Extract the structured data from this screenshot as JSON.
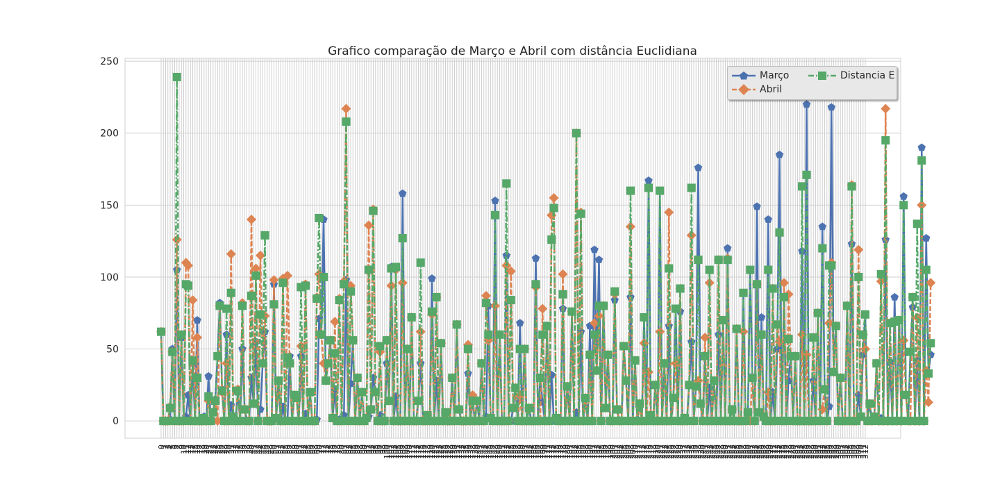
{
  "chart_data": {
    "type": "line",
    "title": "Grafico comparação de Março e Abril com distância Euclidiana",
    "xlabel": "",
    "ylabel": "",
    "ylim": [
      -12,
      252
    ],
    "yticks": [
      0,
      50,
      100,
      150,
      200,
      250
    ],
    "x_count": 313,
    "x_labels_note": "",
    "grid": true,
    "legend_position": "upper right",
    "legend_columns": 2,
    "series": [
      {
        "name": "Março",
        "color": "#4c72b0",
        "marker": "pentagon",
        "linestyle": "solid",
        "values": [
          62,
          0,
          0,
          0,
          1,
          50,
          0,
          105,
          0,
          58,
          0,
          3,
          18,
          0,
          40,
          0,
          70,
          0,
          0,
          3,
          0,
          31,
          0,
          6,
          15,
          45,
          82,
          22,
          0,
          60,
          0,
          11,
          3,
          0,
          20,
          0,
          50,
          8,
          0,
          0,
          30,
          12,
          55,
          0,
          8,
          40,
          62,
          0,
          0,
          0,
          95,
          2,
          28,
          0,
          10,
          0,
          0,
          45,
          0,
          18,
          16,
          0,
          45,
          0,
          5,
          0,
          20,
          0,
          0,
          1,
          71,
          60,
          140,
          28,
          40,
          56,
          2,
          22,
          0,
          1,
          0,
          4,
          98,
          0,
          26,
          56,
          0,
          30,
          0,
          20,
          0,
          2,
          3,
          8,
          30,
          20,
          0,
          4,
          0,
          0,
          40,
          14,
          107,
          0,
          17,
          0,
          0,
          158,
          0,
          50,
          0,
          72,
          0,
          0,
          14,
          40,
          0,
          0,
          4,
          0,
          99,
          0,
          28,
          0,
          54,
          0,
          6,
          0,
          0,
          30,
          0,
          67,
          8,
          0,
          0,
          0,
          33,
          0,
          14,
          0,
          14,
          0,
          40,
          0,
          3,
          80,
          2,
          0,
          153,
          0,
          60,
          0,
          0,
          115,
          0,
          0,
          9,
          23,
          0,
          68,
          0,
          50,
          0,
          9,
          0,
          0,
          113,
          0,
          30,
          13,
          0,
          66,
          0,
          32,
          0,
          2,
          0,
          0,
          78,
          0,
          24,
          0,
          76,
          0,
          6,
          0,
          62,
          0,
          16,
          0,
          66,
          0,
          119,
          35,
          112,
          0,
          80,
          9,
          46,
          0,
          0,
          84,
          8,
          0,
          0,
          52,
          28,
          0,
          86,
          0,
          42,
          0,
          12,
          0,
          72,
          0,
          167,
          4,
          0,
          25,
          0,
          160,
          0,
          40,
          0,
          66,
          0,
          16,
          78,
          0,
          76,
          0,
          2,
          0,
          25,
          55,
          0,
          24,
          176,
          12,
          0,
          45,
          0,
          23,
          0,
          28,
          0,
          60,
          0,
          70,
          0,
          120,
          0,
          8,
          0,
          64,
          0,
          0,
          89,
          0,
          6,
          105,
          30,
          0,
          149,
          6,
          72,
          3,
          0,
          140,
          0,
          20,
          0,
          50,
          185,
          0,
          86,
          0,
          28,
          45,
          0,
          45,
          0,
          0,
          118,
          0,
          220,
          0,
          0,
          28,
          0,
          75,
          0,
          135,
          22,
          0,
          10,
          218,
          34,
          66,
          0,
          30,
          0,
          0,
          80,
          0,
          123,
          0,
          0,
          18,
          3,
          46,
          74,
          0,
          12,
          0,
          3,
          40,
          0,
          2,
          0,
          126,
          0,
          41,
          0,
          86,
          0,
          70,
          0,
          156,
          18,
          0,
          48,
          79,
          0,
          42,
          0,
          190,
          0,
          127,
          33,
          46
        ]
      },
      {
        "name": "Abril",
        "color": "#dd8452",
        "marker": "diamond",
        "linestyle": "dashed",
        "values": [
          62,
          0,
          0,
          0,
          10,
          48,
          0,
          126,
          0,
          60,
          0,
          110,
          108,
          0,
          84,
          0,
          58,
          0,
          0,
          1,
          0,
          14,
          0,
          6,
          13,
          0,
          80,
          20,
          0,
          40,
          0,
          116,
          3,
          0,
          22,
          0,
          82,
          8,
          0,
          0,
          140,
          12,
          106,
          0,
          115,
          40,
          73,
          0,
          0,
          0,
          98,
          2,
          28,
          0,
          99,
          0,
          101,
          40,
          0,
          18,
          16,
          0,
          52,
          0,
          95,
          0,
          20,
          0,
          0,
          86,
          102,
          60,
          40,
          28,
          40,
          56,
          2,
          69,
          0,
          85,
          0,
          97,
          217,
          0,
          94,
          56,
          0,
          30,
          0,
          20,
          0,
          2,
          136,
          8,
          147,
          20,
          0,
          48,
          0,
          0,
          56,
          14,
          94,
          0,
          105,
          0,
          0,
          96,
          0,
          50,
          0,
          72,
          0,
          0,
          14,
          62,
          0,
          0,
          4,
          0,
          74,
          0,
          86,
          0,
          54,
          0,
          6,
          0,
          0,
          30,
          0,
          67,
          8,
          0,
          0,
          0,
          53,
          0,
          18,
          0,
          14,
          0,
          40,
          0,
          87,
          56,
          2,
          0,
          80,
          0,
          60,
          0,
          0,
          108,
          0,
          104,
          9,
          23,
          0,
          18,
          0,
          50,
          0,
          9,
          0,
          0,
          93,
          0,
          0,
          78,
          0,
          66,
          0,
          143,
          155,
          2,
          0,
          0,
          102,
          0,
          24,
          0,
          76,
          0,
          200,
          0,
          145,
          0,
          16,
          0,
          46,
          0,
          68,
          35,
          73,
          0,
          80,
          9,
          46,
          0,
          0,
          88,
          8,
          0,
          0,
          52,
          28,
          0,
          135,
          0,
          42,
          0,
          12,
          0,
          54,
          0,
          34,
          4,
          0,
          25,
          0,
          62,
          0,
          40,
          0,
          145,
          0,
          16,
          40,
          0,
          92,
          0,
          2,
          0,
          25,
          129,
          0,
          24,
          28,
          12,
          0,
          58,
          0,
          96,
          0,
          28,
          0,
          112,
          0,
          70,
          0,
          113,
          0,
          8,
          0,
          64,
          0,
          0,
          62,
          0,
          6,
          0,
          30,
          0,
          95,
          6,
          60,
          3,
          0,
          20,
          0,
          92,
          0,
          67,
          55,
          0,
          96,
          0,
          88,
          45,
          0,
          45,
          0,
          0,
          60,
          0,
          46,
          0,
          0,
          58,
          0,
          75,
          0,
          8,
          22,
          0,
          68,
          110,
          34,
          66,
          0,
          30,
          0,
          0,
          80,
          0,
          164,
          0,
          0,
          119,
          3,
          60,
          50,
          0,
          12,
          0,
          3,
          40,
          0,
          97,
          0,
          217,
          0,
          68,
          0,
          69,
          0,
          70,
          0,
          56,
          18,
          0,
          0,
          86,
          0,
          72,
          0,
          150,
          0,
          35,
          13,
          96
        ]
      },
      {
        "name": "Distancia E",
        "color": "#55a868",
        "marker": "square",
        "linestyle": "dashdot",
        "values": [
          62,
          0,
          0,
          0,
          9,
          48,
          0,
          239,
          0,
          60,
          0,
          95,
          94,
          0,
          42,
          0,
          30,
          0,
          0,
          2,
          0,
          17,
          0,
          6,
          14,
          45,
          80,
          21,
          0,
          78,
          0,
          89,
          3,
          0,
          21,
          0,
          80,
          8,
          0,
          0,
          87,
          12,
          101,
          0,
          74,
          40,
          129,
          0,
          0,
          0,
          81,
          2,
          28,
          0,
          96,
          0,
          44,
          40,
          0,
          18,
          16,
          0,
          93,
          0,
          94,
          0,
          20,
          0,
          0,
          85,
          141,
          60,
          100,
          28,
          40,
          56,
          2,
          47,
          0,
          84,
          0,
          95,
          208,
          0,
          90,
          56,
          0,
          30,
          0,
          20,
          0,
          2,
          105,
          8,
          146,
          20,
          0,
          52,
          0,
          0,
          56,
          14,
          106,
          0,
          107,
          0,
          0,
          127,
          0,
          50,
          0,
          72,
          0,
          0,
          14,
          110,
          0,
          0,
          4,
          0,
          76,
          0,
          86,
          0,
          54,
          0,
          6,
          0,
          0,
          30,
          0,
          67,
          8,
          0,
          0,
          0,
          50,
          0,
          14,
          0,
          14,
          0,
          40,
          0,
          82,
          60,
          2,
          0,
          143,
          0,
          60,
          0,
          0,
          165,
          0,
          84,
          9,
          23,
          0,
          50,
          0,
          50,
          0,
          9,
          0,
          0,
          95,
          0,
          30,
          60,
          0,
          66,
          0,
          126,
          148,
          2,
          0,
          0,
          88,
          0,
          24,
          0,
          76,
          0,
          200,
          0,
          144,
          0,
          16,
          0,
          46,
          0,
          60,
          35,
          80,
          0,
          80,
          9,
          46,
          0,
          0,
          90,
          8,
          0,
          0,
          52,
          28,
          0,
          160,
          0,
          42,
          0,
          12,
          0,
          72,
          0,
          162,
          4,
          0,
          25,
          0,
          160,
          0,
          40,
          0,
          106,
          0,
          16,
          78,
          0,
          92,
          0,
          2,
          0,
          25,
          162,
          0,
          24,
          112,
          12,
          0,
          45,
          0,
          105,
          0,
          28,
          0,
          112,
          0,
          70,
          0,
          112,
          0,
          8,
          0,
          64,
          0,
          0,
          89,
          0,
          6,
          105,
          30,
          0,
          95,
          6,
          60,
          3,
          0,
          105,
          0,
          92,
          0,
          67,
          131,
          0,
          86,
          0,
          57,
          45,
          0,
          45,
          0,
          0,
          163,
          0,
          171,
          0,
          0,
          58,
          0,
          75,
          0,
          120,
          22,
          0,
          108,
          108,
          34,
          66,
          0,
          30,
          0,
          0,
          80,
          0,
          163,
          0,
          0,
          100,
          3,
          60,
          74,
          0,
          12,
          0,
          3,
          40,
          0,
          102,
          0,
          195,
          0,
          68,
          0,
          69,
          0,
          70,
          0,
          150,
          18,
          0,
          48,
          86,
          0,
          137,
          0,
          181,
          0,
          105,
          33,
          54
        ]
      }
    ]
  },
  "legend": {
    "entries": [
      "Março",
      "Abril",
      "Distancia E"
    ]
  }
}
